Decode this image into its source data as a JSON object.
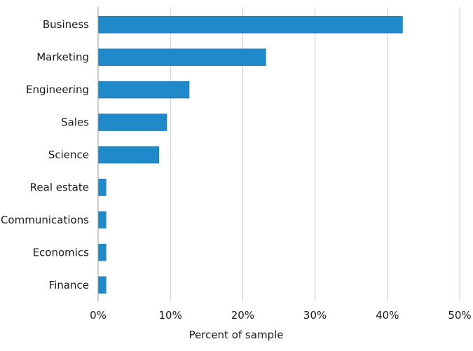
{
  "chart_data": {
    "type": "bar",
    "orientation": "horizontal",
    "categories": [
      "Business",
      "Marketing",
      "Engineering",
      "Sales",
      "Science",
      "Real estate",
      "Communications",
      "Economics",
      "Finance"
    ],
    "values": [
      42.1,
      23.2,
      12.6,
      9.5,
      8.4,
      1.1,
      1.1,
      1.1,
      1.1
    ],
    "xlabel": "Percent of sample",
    "ylabel": "",
    "xlim": [
      0,
      50
    ],
    "xticks": [
      0,
      10,
      20,
      30,
      40,
      50
    ],
    "tick_suffix": "%",
    "grid": "vertical",
    "legend": "none",
    "bar_color": "#2089c9"
  }
}
